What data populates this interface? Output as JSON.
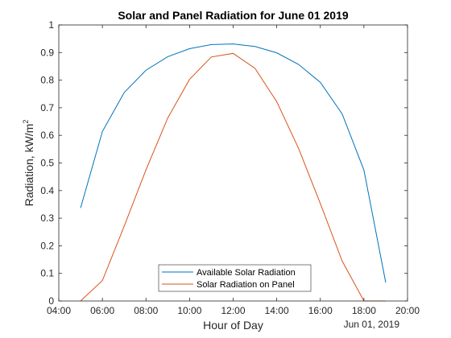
{
  "chart_data": {
    "type": "line",
    "title": "Solar and Panel Radiation for June 01 2019",
    "xlabel": "Hour of Day",
    "ylabel": "Radiation,  kW/m",
    "ylabel_superscript": "2",
    "x_date_label": "Jun 01, 2019",
    "xlim": [
      "04:00",
      "20:00"
    ],
    "ylim": [
      0,
      1
    ],
    "x_ticks": [
      "04:00",
      "06:00",
      "08:00",
      "10:00",
      "12:00",
      "14:00",
      "16:00",
      "18:00",
      "20:00"
    ],
    "y_ticks": [
      "0",
      "0.1",
      "0.2",
      "0.3",
      "0.4",
      "0.5",
      "0.6",
      "0.7",
      "0.8",
      "0.9",
      "1"
    ],
    "grid": false,
    "legend_position": "bottom-center",
    "x": [
      "05:00",
      "06:00",
      "07:00",
      "08:00",
      "09:00",
      "10:00",
      "11:00",
      "12:00",
      "13:00",
      "14:00",
      "15:00",
      "16:00",
      "17:00",
      "18:00",
      "19:00"
    ],
    "series": [
      {
        "name": "Available Solar Radiation",
        "color": "#0072BD",
        "values": [
          0.337,
          0.614,
          0.755,
          0.836,
          0.885,
          0.914,
          0.929,
          0.931,
          0.922,
          0.899,
          0.857,
          0.792,
          0.678,
          0.474,
          0.067
        ]
      },
      {
        "name": "Solar Radiation on Panel",
        "color": "#D95319",
        "values": [
          0.0,
          0.074,
          0.271,
          0.475,
          0.663,
          0.803,
          0.884,
          0.897,
          0.843,
          0.722,
          0.553,
          0.353,
          0.145,
          0.0,
          0.0
        ]
      }
    ]
  }
}
